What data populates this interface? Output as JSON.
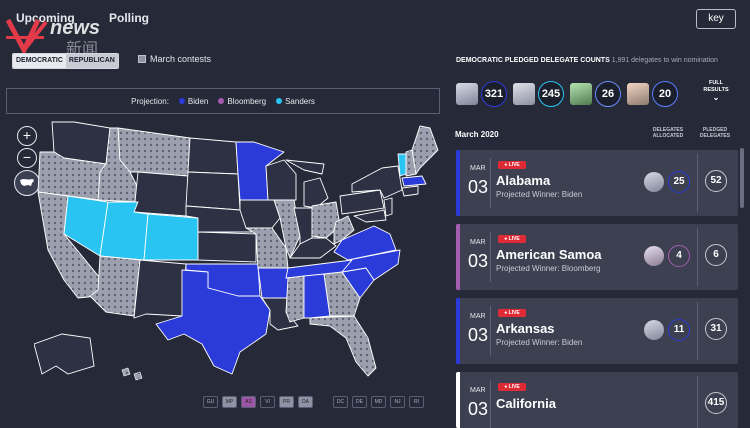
{
  "nav": {
    "tabs": [
      "Upcoming",
      "Polling"
    ],
    "key_label": "key",
    "logo_text": "news",
    "logo_cn": "新闻"
  },
  "party_toggle": {
    "dem": "DEMOCRATIC",
    "rep": "REPUBLICAN"
  },
  "march_contests": "March contests",
  "projection": {
    "label": "Projection:",
    "items": [
      {
        "name": "Biden",
        "color": "#2b3bd9"
      },
      {
        "name": "Bloomberg",
        "color": "#a45db0"
      },
      {
        "name": "Sanders",
        "color": "#29c4f2"
      }
    ]
  },
  "map_controls": {
    "zoom_in": "+",
    "zoom_out": "−"
  },
  "territories": [
    "GU",
    "MP",
    "AS",
    "VI",
    "PR",
    "DA",
    "DC",
    "DE",
    "MD",
    "NJ",
    "RI"
  ],
  "delegates": {
    "title": "DEMOCRATIC PLEDGED DELEGATE COUNTS",
    "subtitle": "1,991 delegates to win nomination",
    "candidates": [
      {
        "count": "321",
        "ring": "#2b3bd9"
      },
      {
        "count": "245",
        "ring": "#29c4f2"
      },
      {
        "count": "26",
        "ring": "#6b8cff"
      },
      {
        "count": "20",
        "ring": "#5a7dff"
      }
    ],
    "full_results": "FULL RESULTS"
  },
  "schedule": {
    "month": "March 2020",
    "col1": "DELEGATES ALLOCATED",
    "col2": "PLEDGED DELEGATES"
  },
  "races": [
    {
      "mon": "MAR",
      "day": "03",
      "live": "LIVE",
      "state": "Alabama",
      "winner": "Projected Winner: Biden",
      "allocated": "25",
      "pledged": "52",
      "color": "#2b3bd9"
    },
    {
      "mon": "MAR",
      "day": "03",
      "live": "LIVE",
      "state": "American Samoa",
      "winner": "Projected Winner: Bloomberg",
      "allocated": "4",
      "pledged": "6",
      "color": "#a45db0"
    },
    {
      "mon": "MAR",
      "day": "03",
      "live": "LIVE",
      "state": "Arkansas",
      "winner": "Projected Winner: Biden",
      "allocated": "11",
      "pledged": "31",
      "color": "#2b3bd9"
    },
    {
      "mon": "MAR",
      "day": "03",
      "live": "LIVE",
      "state": "California",
      "winner": "",
      "allocated": "",
      "pledged": "415",
      "color": "#ffffff"
    }
  ]
}
